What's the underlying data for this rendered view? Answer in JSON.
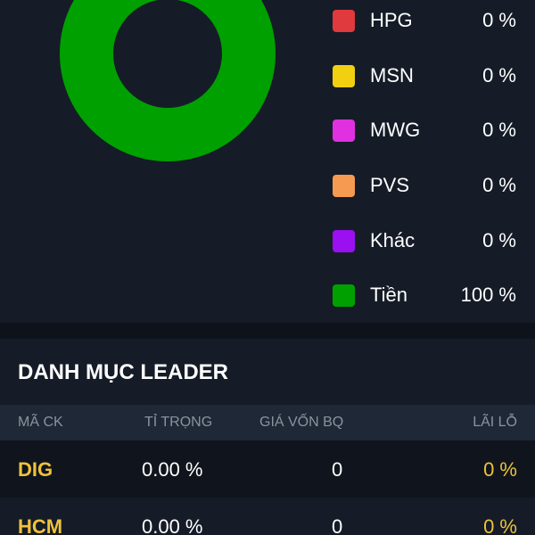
{
  "allocation": {
    "colors": {
      "cash": "#00a000",
      "background": "#151c27"
    },
    "legend": [
      {
        "code": "HPG",
        "value": "0 %",
        "color": "#e0393e"
      },
      {
        "code": "MSN",
        "value": "0 %",
        "color": "#f0d010"
      },
      {
        "code": "MWG",
        "value": "0 %",
        "color": "#e030e0"
      },
      {
        "code": "PVS",
        "value": "0 %",
        "color": "#f59a50"
      },
      {
        "code": "Khác",
        "value": "0 %",
        "color": "#9a10f0"
      },
      {
        "code": "Tiền",
        "value": "100 %",
        "color": "#00a000"
      }
    ]
  },
  "leader": {
    "title": "DANH MỤC LEADER",
    "columns": {
      "code": "MÃ CK",
      "weight": "TỈ TRỌNG",
      "cost": "GIÁ VỐN BQ",
      "pl": "LÃI LỖ"
    },
    "rows": [
      {
        "code": "DIG",
        "weight": "0.00 %",
        "cost": "0",
        "pl": "0 %"
      },
      {
        "code": "HCM",
        "weight": "0.00 %",
        "cost": "0",
        "pl": "0 %"
      }
    ]
  }
}
